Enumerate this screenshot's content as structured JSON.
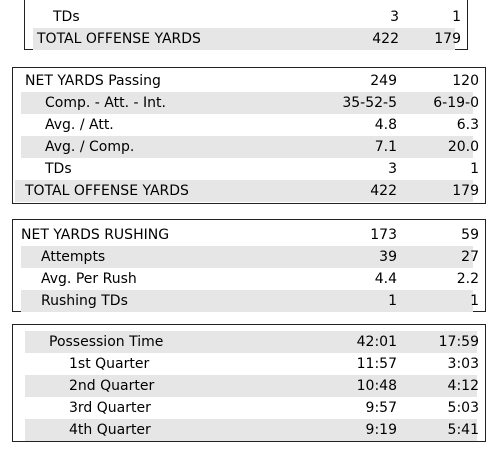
{
  "colors": {
    "row_shade": "#e6e6e6",
    "border": "#222222"
  },
  "top_panel": {
    "rows": [
      {
        "label": "TDs",
        "team_a": "3",
        "team_b": "1"
      },
      {
        "label": "TOTAL OFFENSE YARDS",
        "team_a": "422",
        "team_b": "179"
      }
    ]
  },
  "passing": {
    "rows": [
      {
        "label": "NET YARDS Passing",
        "team_a": "249",
        "team_b": "120"
      },
      {
        "label": "Comp. - Att. - Int.",
        "team_a": "35-52-5",
        "team_b": "6-19-0"
      },
      {
        "label": "Avg. / Att.",
        "team_a": "4.8",
        "team_b": "6.3"
      },
      {
        "label": "Avg. / Comp.",
        "team_a": "7.1",
        "team_b": "20.0"
      },
      {
        "label": "TDs",
        "team_a": "3",
        "team_b": "1"
      },
      {
        "label": "TOTAL OFFENSE YARDS",
        "team_a": "422",
        "team_b": "179"
      }
    ]
  },
  "rushing": {
    "rows": [
      {
        "label": "NET YARDS RUSHING",
        "team_a": "173",
        "team_b": "59"
      },
      {
        "label": "Attempts",
        "team_a": "39",
        "team_b": "27"
      },
      {
        "label": "Avg. Per Rush",
        "team_a": "4.4",
        "team_b": "2.2"
      },
      {
        "label": "Rushing TDs",
        "team_a": "1",
        "team_b": "1"
      }
    ]
  },
  "possession": {
    "rows": [
      {
        "label": "Possession Time",
        "team_a": "42:01",
        "team_b": "17:59"
      },
      {
        "label": "1st Quarter",
        "team_a": "11:57",
        "team_b": "3:03"
      },
      {
        "label": "2nd Quarter",
        "team_a": "10:48",
        "team_b": "4:12"
      },
      {
        "label": "3rd Quarter",
        "team_a": "9:57",
        "team_b": "5:03"
      },
      {
        "label": "4th Quarter",
        "team_a": "9:19",
        "team_b": "5:41"
      }
    ]
  }
}
